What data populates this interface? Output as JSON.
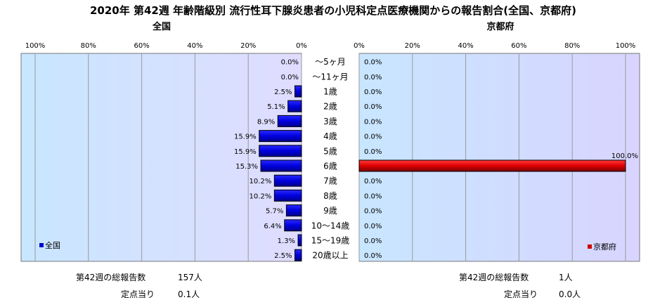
{
  "chart_data": {
    "type": "bar",
    "title": "2020年 第42週 年齢階級別 流行性耳下腺炎患者の小児科定点医療機関からの報告割合(全国、京都府)",
    "categories": [
      "～5ヶ月",
      "～11ヶ月",
      "1歳",
      "2歳",
      "3歳",
      "4歳",
      "5歳",
      "6歳",
      "7歳",
      "8歳",
      "9歳",
      "10～14歳",
      "15～19歳",
      "20歳以上"
    ],
    "x_ticks": [
      "100%",
      "80%",
      "60%",
      "40%",
      "20%",
      "0%"
    ],
    "x_ticks_right": [
      "0%",
      "20%",
      "40%",
      "60%",
      "80%",
      "100%"
    ],
    "xlim": [
      0,
      100
    ],
    "grid": true,
    "panels": [
      {
        "panel_title": "全国",
        "legend": "全国",
        "legend_position": "bottom-left",
        "color": "#0000cc",
        "values": [
          0.0,
          0.0,
          2.5,
          5.1,
          8.9,
          15.9,
          15.9,
          15.3,
          10.2,
          10.2,
          5.7,
          6.4,
          1.3,
          2.5
        ],
        "value_labels": [
          "0.0%",
          "0.0%",
          "2.5%",
          "5.1%",
          "8.9%",
          "15.9%",
          "15.9%",
          "15.3%",
          "10.2%",
          "10.2%",
          "5.7%",
          "6.4%",
          "1.3%",
          "2.5%"
        ],
        "total_label": "第42週の総報告数",
        "total_value": "157人",
        "per_site_label": "定点当り",
        "per_site_value": "0.1人"
      },
      {
        "panel_title": "京都府",
        "legend": "京都府",
        "legend_position": "bottom-right",
        "color": "#cc0000",
        "values": [
          0.0,
          0.0,
          0.0,
          0.0,
          0.0,
          0.0,
          0.0,
          100.0,
          0.0,
          0.0,
          0.0,
          0.0,
          0.0,
          0.0
        ],
        "value_labels": [
          "0.0%",
          "0.0%",
          "0.0%",
          "0.0%",
          "0.0%",
          "0.0%",
          "0.0%",
          "100.0%",
          "0.0%",
          "0.0%",
          "0.0%",
          "0.0%",
          "0.0%",
          "0.0%"
        ],
        "total_label": "第42週の総報告数",
        "total_value": "1人",
        "per_site_label": "定点当り",
        "per_site_value": "0.0人"
      }
    ]
  }
}
